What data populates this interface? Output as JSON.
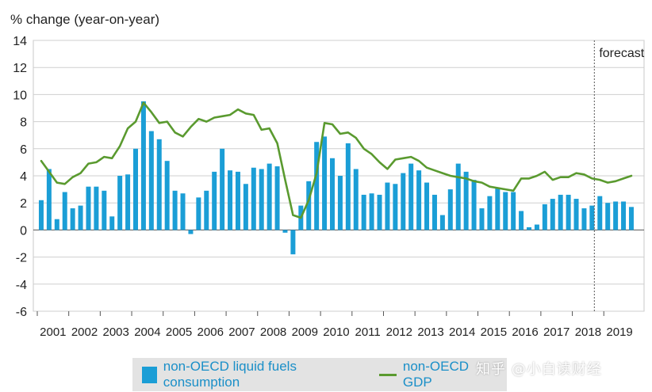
{
  "chart_data": {
    "type": "bar",
    "ylabel": "% change (year-on-year)",
    "ylim": [
      -6,
      14
    ],
    "yticks": [
      14,
      12,
      10,
      8,
      6,
      4,
      2,
      0,
      -2,
      -4,
      -6
    ],
    "years": [
      "2001",
      "2002",
      "2003",
      "2004",
      "2005",
      "2006",
      "2007",
      "2008",
      "2009",
      "2010",
      "2011",
      "2012",
      "2013",
      "2014",
      "2015",
      "2016",
      "2017",
      "2018",
      "2019"
    ],
    "forecast_label": "forecast",
    "forecast_start_quarter": 71,
    "grid": true,
    "series": [
      {
        "name": "non-OECD liquid fuels consumption",
        "type": "bar",
        "color": "#1b9ed6",
        "values": [
          2.2,
          4.5,
          0.8,
          2.8,
          1.6,
          1.8,
          3.2,
          3.2,
          2.9,
          1.0,
          4.0,
          4.1,
          6.0,
          9.5,
          7.3,
          6.7,
          5.1,
          2.9,
          2.7,
          -0.3,
          2.4,
          2.9,
          4.3,
          6.0,
          4.4,
          4.3,
          3.4,
          4.6,
          4.5,
          4.9,
          4.7,
          -0.2,
          -1.8,
          1.8,
          3.6,
          6.5,
          6.9,
          5.3,
          4.0,
          6.4,
          4.5,
          2.6,
          2.7,
          2.6,
          3.5,
          3.4,
          4.2,
          4.9,
          4.4,
          3.5,
          2.6,
          1.1,
          3.0,
          4.9,
          4.3,
          3.7,
          1.6,
          2.5,
          3.1,
          2.8,
          2.8,
          1.4,
          0.2,
          0.4,
          1.9,
          2.3,
          2.6,
          2.6,
          2.3,
          1.6,
          1.8,
          2.5,
          2.0,
          2.1,
          2.1,
          1.7
        ]
      },
      {
        "name": "non-OECD GDP",
        "type": "line",
        "color": "#5a9a2f",
        "values": [
          5.1,
          4.3,
          3.5,
          3.4,
          3.9,
          4.2,
          4.9,
          5.0,
          5.4,
          5.3,
          6.2,
          7.5,
          8.0,
          9.4,
          8.7,
          7.9,
          8.0,
          7.2,
          6.9,
          7.6,
          8.2,
          8.0,
          8.3,
          8.4,
          8.5,
          8.9,
          8.6,
          8.5,
          7.4,
          7.5,
          6.4,
          3.7,
          1.1,
          0.9,
          2.2,
          4.2,
          7.9,
          7.8,
          7.1,
          7.2,
          6.8,
          6.0,
          5.6,
          5.0,
          4.5,
          5.2,
          5.3,
          5.4,
          5.1,
          4.6,
          4.4,
          4.2,
          4.0,
          3.9,
          3.8,
          3.6,
          3.5,
          3.2,
          3.1,
          3.0,
          2.9,
          3.8,
          3.8,
          4.0,
          4.3,
          3.7,
          3.9,
          3.9,
          4.2,
          4.1,
          3.8,
          3.7,
          3.5,
          3.6,
          3.8,
          4.0
        ]
      }
    ]
  },
  "legend": {
    "bar_label": "non-OECD liquid fuels consumption",
    "line_label": "non-OECD GDP"
  },
  "watermark": "知乎 @小白读财经"
}
